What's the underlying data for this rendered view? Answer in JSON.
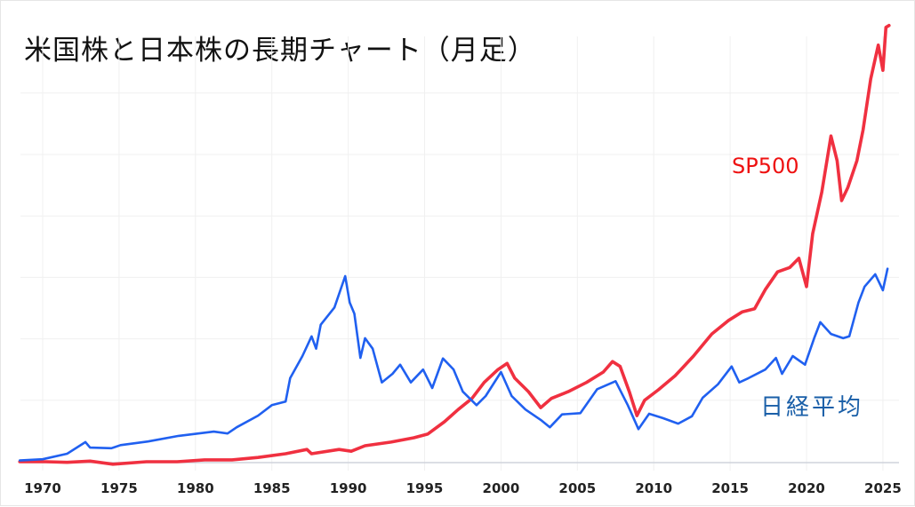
{
  "title": "米国株と日本株の長期チャート（月足）",
  "colors": {
    "sp500_line": "#f03040",
    "nikkei_line": "#2060f0",
    "sp500_label": "#ee1111",
    "nikkei_label": "#1a5fa8",
    "grid": "#f0f0f0",
    "baseline": "#cfd3dc"
  },
  "annotations": {
    "sp500": "SP500",
    "nikkei": "日経平均"
  },
  "chart_data": {
    "type": "line",
    "title": "米国株と日本株の長期チャート（月足）",
    "xlabel": "",
    "ylabel": "",
    "x_ticks": [
      1970,
      1975,
      1980,
      1985,
      1990,
      1995,
      2000,
      2005,
      2010,
      2015,
      2020,
      2025
    ],
    "xlim": [
      1968.5,
      2026
    ],
    "ylim": [
      0,
      7.3
    ],
    "y_units_note": "relative scale (no y-axis labels shown); each horizontal gridline = 1 unit",
    "y_gridlines": [
      1,
      2,
      3,
      4,
      5,
      6
    ],
    "grid": true,
    "legend": "inline annotations",
    "series": [
      {
        "name": "SP500",
        "color": "#f03040",
        "points": [
          [
            1968.5,
            0.0
          ],
          [
            1970.2,
            0.0
          ],
          [
            1971.6,
            -0.01
          ],
          [
            1973.1,
            0.01
          ],
          [
            1974.6,
            -0.04
          ],
          [
            1976.8,
            0.0
          ],
          [
            1978.8,
            0.0
          ],
          [
            1980.6,
            0.03
          ],
          [
            1982.4,
            0.03
          ],
          [
            1984.1,
            0.07
          ],
          [
            1985.9,
            0.13
          ],
          [
            1987.3,
            0.2
          ],
          [
            1987.6,
            0.13
          ],
          [
            1989.4,
            0.2
          ],
          [
            1990.2,
            0.17
          ],
          [
            1991.1,
            0.26
          ],
          [
            1992.8,
            0.32
          ],
          [
            1994.3,
            0.39
          ],
          [
            1995.2,
            0.45
          ],
          [
            1996.3,
            0.65
          ],
          [
            1997.2,
            0.85
          ],
          [
            1998.1,
            1.03
          ],
          [
            1998.9,
            1.29
          ],
          [
            1999.8,
            1.5
          ],
          [
            2000.4,
            1.6
          ],
          [
            2000.9,
            1.36
          ],
          [
            2001.8,
            1.14
          ],
          [
            2002.6,
            0.88
          ],
          [
            2003.3,
            1.03
          ],
          [
            2004.4,
            1.14
          ],
          [
            2005.6,
            1.29
          ],
          [
            2006.7,
            1.46
          ],
          [
            2007.3,
            1.63
          ],
          [
            2007.8,
            1.55
          ],
          [
            2008.4,
            1.14
          ],
          [
            2008.9,
            0.75
          ],
          [
            2009.4,
            1.0
          ],
          [
            2010.3,
            1.17
          ],
          [
            2011.4,
            1.4
          ],
          [
            2012.6,
            1.72
          ],
          [
            2013.8,
            2.08
          ],
          [
            2014.9,
            2.3
          ],
          [
            2015.8,
            2.44
          ],
          [
            2016.6,
            2.49
          ],
          [
            2017.3,
            2.8
          ],
          [
            2018.1,
            3.09
          ],
          [
            2018.9,
            3.16
          ],
          [
            2019.5,
            3.31
          ],
          [
            2020.0,
            2.85
          ],
          [
            2020.4,
            3.71
          ],
          [
            2021.0,
            4.39
          ],
          [
            2021.6,
            5.3
          ],
          [
            2022.0,
            4.9
          ],
          [
            2022.3,
            4.25
          ],
          [
            2022.7,
            4.46
          ],
          [
            2023.3,
            4.9
          ],
          [
            2023.7,
            5.4
          ],
          [
            2024.2,
            6.23
          ],
          [
            2024.7,
            6.78
          ],
          [
            2025.0,
            6.37
          ],
          [
            2025.2,
            7.07
          ],
          [
            2025.4,
            7.1
          ]
        ]
      },
      {
        "name": "日経平均",
        "color": "#2060f0",
        "points": [
          [
            1968.5,
            0.02
          ],
          [
            1970.0,
            0.04
          ],
          [
            1971.6,
            0.13
          ],
          [
            1972.8,
            0.32
          ],
          [
            1973.1,
            0.23
          ],
          [
            1974.5,
            0.22
          ],
          [
            1975.1,
            0.27
          ],
          [
            1976.9,
            0.33
          ],
          [
            1978.9,
            0.42
          ],
          [
            1981.2,
            0.49
          ],
          [
            1982.1,
            0.46
          ],
          [
            1982.7,
            0.56
          ],
          [
            1984.1,
            0.75
          ],
          [
            1985.0,
            0.92
          ],
          [
            1985.9,
            0.98
          ],
          [
            1986.2,
            1.36
          ],
          [
            1987.0,
            1.72
          ],
          [
            1987.6,
            2.04
          ],
          [
            1987.9,
            1.84
          ],
          [
            1988.2,
            2.23
          ],
          [
            1989.1,
            2.51
          ],
          [
            1989.8,
            3.02
          ],
          [
            1990.1,
            2.59
          ],
          [
            1990.4,
            2.41
          ],
          [
            1990.8,
            1.69
          ],
          [
            1991.1,
            2.01
          ],
          [
            1991.6,
            1.84
          ],
          [
            1992.2,
            1.29
          ],
          [
            1992.9,
            1.43
          ],
          [
            1993.4,
            1.58
          ],
          [
            1994.1,
            1.29
          ],
          [
            1994.9,
            1.5
          ],
          [
            1995.5,
            1.2
          ],
          [
            1996.2,
            1.68
          ],
          [
            1996.9,
            1.5
          ],
          [
            1997.5,
            1.14
          ],
          [
            1998.4,
            0.92
          ],
          [
            1999.0,
            1.07
          ],
          [
            2000.0,
            1.46
          ],
          [
            2000.7,
            1.07
          ],
          [
            2001.6,
            0.85
          ],
          [
            2002.6,
            0.68
          ],
          [
            2003.2,
            0.56
          ],
          [
            2004.0,
            0.77
          ],
          [
            2005.2,
            0.79
          ],
          [
            2006.3,
            1.18
          ],
          [
            2007.5,
            1.31
          ],
          [
            2008.3,
            0.92
          ],
          [
            2009.0,
            0.53
          ],
          [
            2009.7,
            0.78
          ],
          [
            2010.6,
            0.71
          ],
          [
            2011.6,
            0.62
          ],
          [
            2012.5,
            0.74
          ],
          [
            2013.2,
            1.04
          ],
          [
            2014.2,
            1.26
          ],
          [
            2015.1,
            1.55
          ],
          [
            2015.6,
            1.29
          ],
          [
            2016.2,
            1.36
          ],
          [
            2017.3,
            1.5
          ],
          [
            2018.0,
            1.69
          ],
          [
            2018.4,
            1.43
          ],
          [
            2019.1,
            1.72
          ],
          [
            2019.9,
            1.58
          ],
          [
            2020.5,
            2.01
          ],
          [
            2020.9,
            2.27
          ],
          [
            2021.6,
            2.08
          ],
          [
            2022.4,
            2.01
          ],
          [
            2022.8,
            2.04
          ],
          [
            2023.4,
            2.59
          ],
          [
            2023.8,
            2.85
          ],
          [
            2024.5,
            3.05
          ],
          [
            2025.0,
            2.79
          ],
          [
            2025.3,
            3.14
          ]
        ]
      }
    ]
  }
}
